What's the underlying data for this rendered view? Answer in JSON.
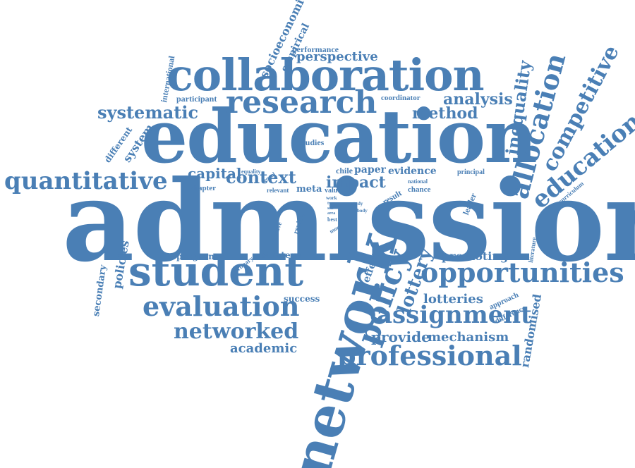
{
  "palette": {
    "word_color": "#4a7fb5",
    "background": "#ffffff"
  },
  "words": {
    "admission": "admission",
    "education": "education",
    "collaboration": "collaboration",
    "research": "research",
    "student": "student",
    "network": "network",
    "opportunities": "opportunities",
    "evaluation": "evaluation",
    "professional": "professional",
    "assignment": "assignment",
    "policy": "policy",
    "networked": "networked",
    "quantitative": "quantitative",
    "allocation": "allocation",
    "educational": "educational",
    "competitive": "competitive",
    "systematic": "systematic",
    "inequality": "inequality",
    "method": "method",
    "analysis": "analysis",
    "context": "context",
    "capital": "capital",
    "impact": "impact",
    "lottery": "lottery",
    "lotteries": "lotteries",
    "perspective": "perspective",
    "performance": "performance",
    "socioeconomic": "socioeconomic",
    "empirical": "empirical",
    "international": "international",
    "participant": "participant",
    "coordinator": "coordinator",
    "system": "system",
    "different": "different",
    "studies": "studies",
    "chapter": "chapter",
    "equality": "equality",
    "equal": "equal",
    "chile": "chile",
    "paper": "paper",
    "evidence": "evidence",
    "principal": "principal",
    "national": "national",
    "chance": "chance",
    "result": "result",
    "value": "value",
    "relevant": "relevant",
    "meta": "meta",
    "leader": "leader",
    "curriculum": "curriculum",
    "review": "review",
    "selective": "selective",
    "work": "work",
    "type": "type",
    "site": "site",
    "area": "area",
    "study": "study",
    "body": "body",
    "best": "best",
    "more": "more",
    "effect": "effect",
    "literature": "literature",
    "policies": "policies",
    "secondary": "secondary",
    "program": "program",
    "primary": "primary",
    "strategy": "strategy",
    "promoting": "promoting",
    "success": "success",
    "approach": "approach",
    "difference": "difference",
    "randomised": "randomised",
    "provide": "provide",
    "mechanism": "mechanism",
    "academic": "academic"
  }
}
